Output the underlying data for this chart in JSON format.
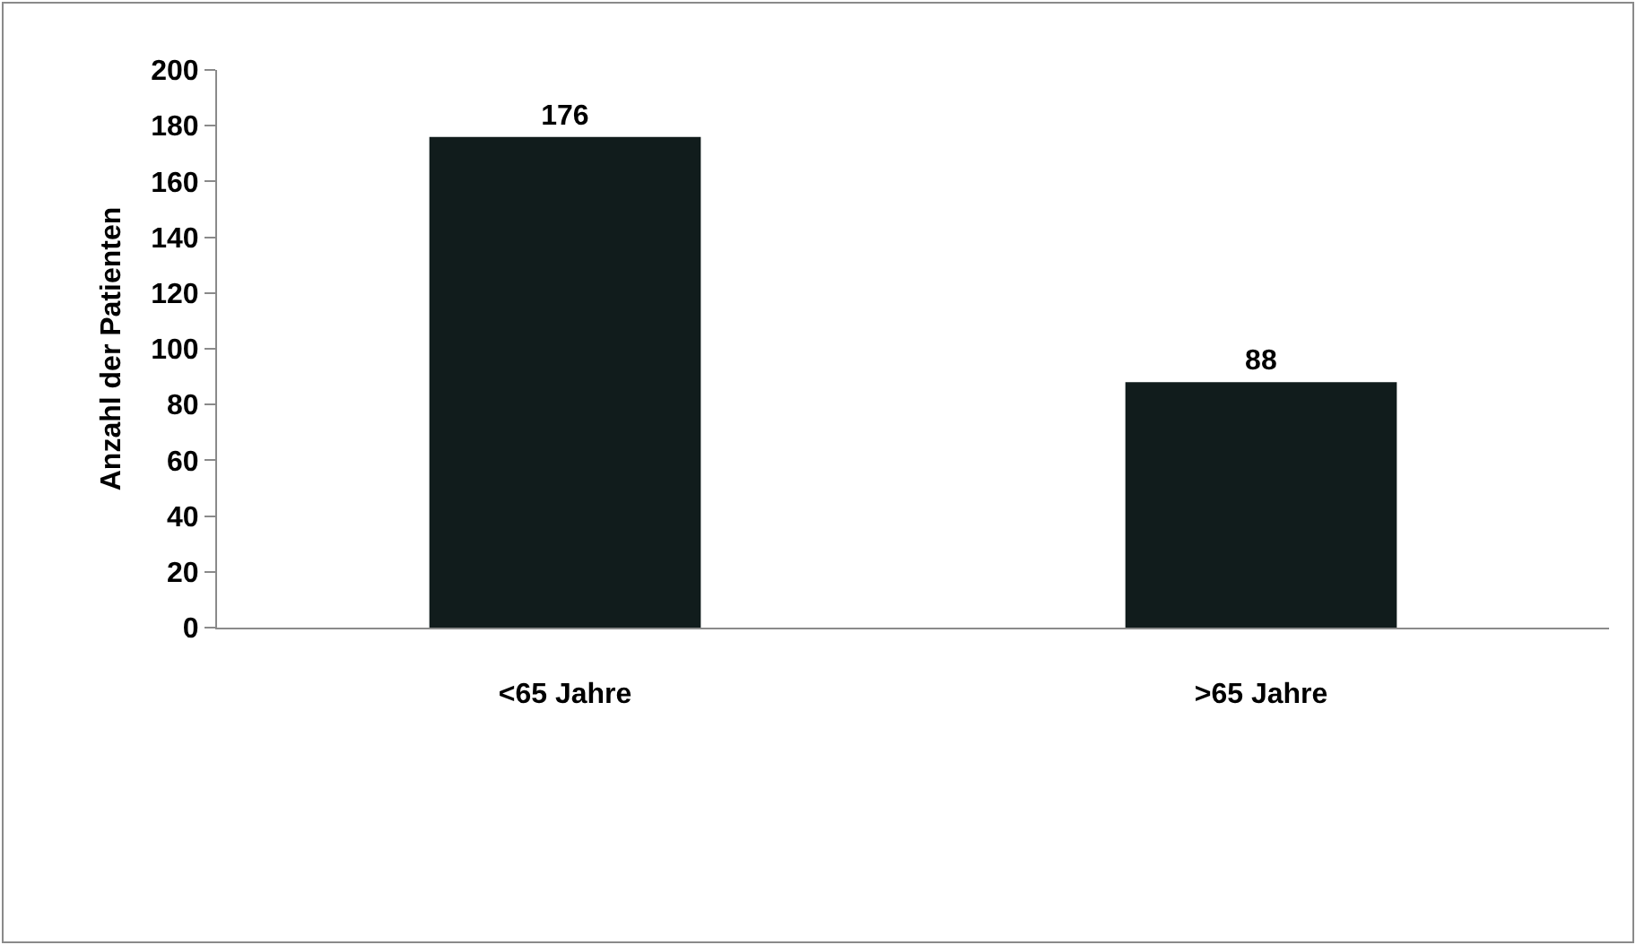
{
  "chart_data": {
    "type": "bar",
    "ylabel": "Anzahl der Patienten",
    "categories": [
      "<65 Jahre",
      ">65 Jahre"
    ],
    "values": [
      176,
      88
    ],
    "color": "#111c1c",
    "ylim": [
      0,
      200
    ],
    "yticks": [
      0,
      20,
      40,
      60,
      80,
      100,
      120,
      140,
      160,
      180,
      200
    ],
    "data_labels": true,
    "grid": false,
    "legend": false
  }
}
